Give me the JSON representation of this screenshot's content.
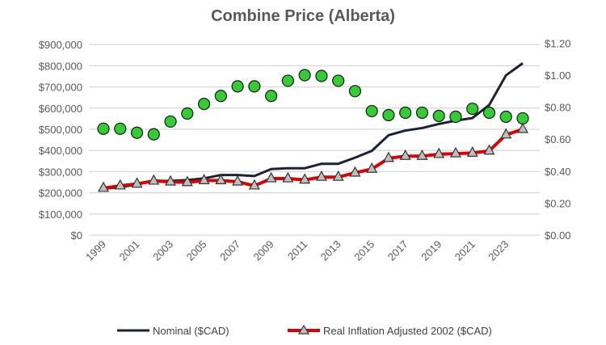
{
  "chart_data": {
    "type": "line",
    "title": "Combine Price (Alberta)",
    "x": [
      1999,
      2000,
      2001,
      2002,
      2003,
      2004,
      2005,
      2006,
      2007,
      2008,
      2009,
      2010,
      2011,
      2012,
      2013,
      2014,
      2015,
      2016,
      2017,
      2018,
      2019,
      2020,
      2021,
      2022,
      2023,
      2024
    ],
    "x_tick_labels": [
      "1999",
      "2001",
      "2003",
      "2005",
      "2007",
      "2009",
      "2011",
      "2013",
      "2015",
      "2017",
      "2019",
      "2021",
      "2023"
    ],
    "y_left_ticks": [
      "$0",
      "$100,000",
      "$200,000",
      "$300,000",
      "$400,000",
      "$500,000",
      "$600,000",
      "$700,000",
      "$800,000",
      "$900,000"
    ],
    "y_right_ticks": [
      "$0.00",
      "$0.20",
      "$0.40",
      "$0.60",
      "$0.80",
      "$1.00",
      "$1.20"
    ],
    "ylim_left": [
      0,
      900000
    ],
    "ylim_right": [
      0,
      1.2
    ],
    "grid": true,
    "legend_position": "bottom",
    "series": [
      {
        "name": "Nominal ($CAD)",
        "axis": "left",
        "color": "#1a2233",
        "marker": "none",
        "values": [
          220000,
          226000,
          240000,
          256000,
          256000,
          260000,
          268000,
          284000,
          284000,
          279000,
          312000,
          316000,
          316000,
          337000,
          337000,
          366000,
          398000,
          472000,
          494000,
          506000,
          525000,
          541000,
          553000,
          615000,
          755000,
          812000
        ]
      },
      {
        "name": "Real Inflation Adjusted 2002 ($CAD)",
        "axis": "left",
        "color": "#e00000",
        "marker": "triangle",
        "values": [
          222000,
          233000,
          242000,
          256000,
          252000,
          249000,
          258000,
          258000,
          252000,
          233000,
          267000,
          267000,
          261000,
          274000,
          274000,
          294000,
          312000,
          363000,
          373000,
          373000,
          382000,
          385000,
          388000,
          398000,
          474000,
          500000
        ]
      },
      {
        "axis": "right",
        "color": "#33cc33",
        "marker": "circle",
        "values": [
          0.665,
          0.665,
          0.64,
          0.63,
          0.71,
          0.76,
          0.82,
          0.87,
          0.93,
          0.93,
          0.87,
          0.965,
          1.0,
          0.995,
          0.965,
          0.9,
          0.775,
          0.75,
          0.765,
          0.765,
          0.745,
          0.74,
          0.79,
          0.765,
          0.74,
          0.73
        ]
      }
    ]
  }
}
